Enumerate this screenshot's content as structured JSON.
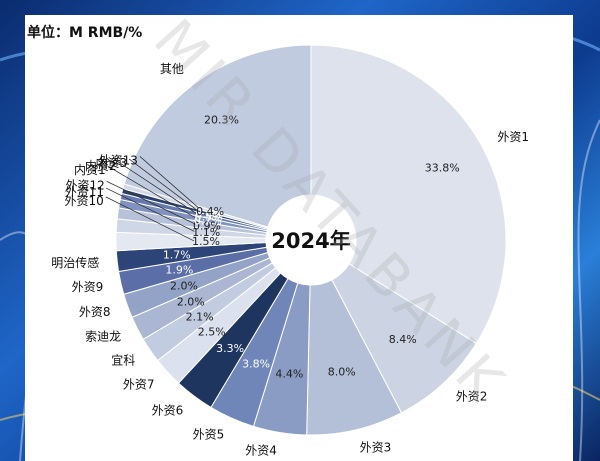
{
  "unit_label": "单位：M RMB/%",
  "watermark": "MIR DATABANK",
  "chart_data": {
    "type": "pie",
    "donut": true,
    "center_label": "2024年",
    "slices": [
      {
        "label": "外资1",
        "value": 33.8,
        "value_label": "33.8%",
        "color": "#dde2ec"
      },
      {
        "label": "外资2",
        "value": 8.4,
        "value_label": "8.4%",
        "color": "#ccd4e4"
      },
      {
        "label": "外资3",
        "value": 8.0,
        "value_label": "8.0%",
        "color": "#b4c0d8"
      },
      {
        "label": "外资4",
        "value": 4.4,
        "value_label": "4.4%",
        "color": "#8a9cc4"
      },
      {
        "label": "外资5",
        "value": 3.8,
        "value_label": "3.8%",
        "color": "#7085b8"
      },
      {
        "label": "外资6",
        "value": 3.3,
        "value_label": "3.3%",
        "color": "#1e3560"
      },
      {
        "label": "外资7",
        "value": 2.5,
        "value_label": "2.5%",
        "color": "#dbe1ee"
      },
      {
        "label": "宜科",
        "value": 2.1,
        "value_label": "2.1%",
        "color": "#c2cce0"
      },
      {
        "label": "索迪龙",
        "value": 2.0,
        "value_label": "2.0%",
        "color": "#aab6d2"
      },
      {
        "label": "外资8",
        "value": 2.0,
        "value_label": "2.0%",
        "color": "#93a3c8"
      },
      {
        "label": "外资9",
        "value": 1.9,
        "value_label": "1.9%",
        "color": "#5b6ea8"
      },
      {
        "label": "明治传感",
        "value": 1.7,
        "value_label": "1.7%",
        "color": "#2c4478"
      },
      {
        "label": "外资10",
        "value": 1.5,
        "value_label": "1.5%",
        "color": "#e4e8f0"
      },
      {
        "label": "外资11",
        "value": 1.1,
        "value_label": "1.1%",
        "color": "#cfd6e6"
      },
      {
        "label": "外资12",
        "value": 0.9,
        "value_label": "0.9%",
        "color": "#b7c2da"
      },
      {
        "label": "内资1",
        "value": 0.7,
        "value_label": "0.7%",
        "color": "#8092c0"
      },
      {
        "label": "内资2",
        "value": 0.5,
        "value_label": "0.5%",
        "color": "#6579b0"
      },
      {
        "label": "内资3",
        "value": 0.4,
        "value_label": "0.4%",
        "color": "#2a4170"
      },
      {
        "label": "外资13",
        "value": 0.4,
        "value_label": "0.4%",
        "color": "#d3d9e8"
      },
      {
        "label": "其他",
        "value": 20.3,
        "value_label": "20.3%",
        "color": "#c0cbe0"
      }
    ]
  }
}
